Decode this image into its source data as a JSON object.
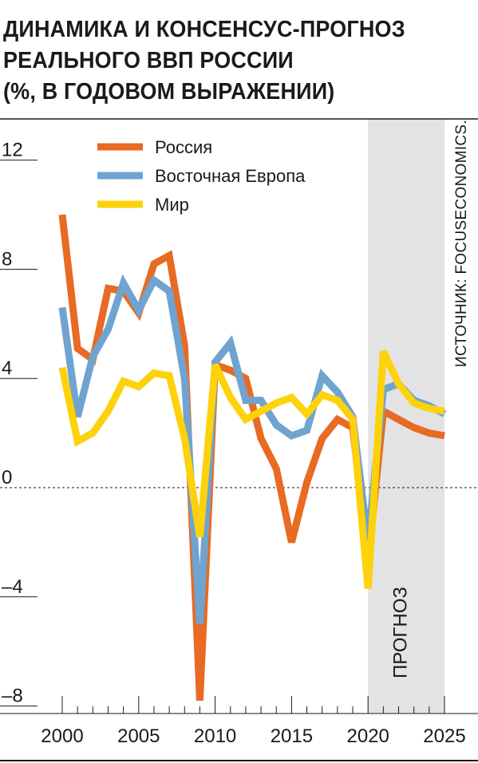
{
  "title_lines": [
    "ДИНАМИКА И КОНСЕНСУС-ПРОГНОЗ",
    "РЕАЛЬНОГО ВВП РОССИИ",
    "(%, В ГОДОВОМ ВЫРАЖЕНИИ)"
  ],
  "source": "ИСТОЧНИК: FOCUSECONOMICS.",
  "chart_data": {
    "type": "line",
    "title": "ДИНАМИКА И КОНСЕНСУС-ПРОГНОЗ РЕАЛЬНОГО ВВП РОССИИ (%, В ГОДОВОМ ВЫРАЖЕНИИ)",
    "x": [
      2000,
      2001,
      2002,
      2003,
      2004,
      2005,
      2006,
      2007,
      2008,
      2009,
      2010,
      2011,
      2012,
      2013,
      2014,
      2015,
      2016,
      2017,
      2018,
      2019,
      2020,
      2021,
      2022,
      2023,
      2024,
      2025
    ],
    "x_ticks": [
      "2000",
      "2005",
      "2010",
      "2015",
      "2020",
      "2025"
    ],
    "y_ticks": [
      "12",
      "8",
      "4",
      "0",
      "–4",
      "–8"
    ],
    "ylim": [
      -8,
      12
    ],
    "xlim": [
      2000,
      2025
    ],
    "zero_line": "dashed",
    "legend_position": "top-left",
    "forecast": {
      "label": "ПРОГНОЗ",
      "from": 2020,
      "to": 2025,
      "color": "#e3e3e6"
    },
    "series": [
      {
        "name": "Россия",
        "color": "#e86a23",
        "values": [
          10.0,
          5.1,
          4.7,
          7.3,
          7.2,
          6.4,
          8.2,
          8.5,
          5.2,
          -7.8,
          4.5,
          4.3,
          4.0,
          1.8,
          0.7,
          -2.0,
          0.2,
          1.8,
          2.5,
          2.2,
          -2.7,
          2.8,
          2.5,
          2.2,
          2.0,
          1.9
        ]
      },
      {
        "name": "Восточная Европа",
        "color": "#6fa3d0",
        "values": [
          6.6,
          2.6,
          4.8,
          5.8,
          7.5,
          6.5,
          7.6,
          7.2,
          4.0,
          -5.0,
          4.6,
          5.3,
          3.2,
          3.2,
          2.3,
          1.9,
          2.1,
          4.1,
          3.5,
          2.6,
          -2.0,
          3.6,
          3.8,
          3.2,
          3.0,
          2.7
        ]
      },
      {
        "name": "Мир",
        "color": "#fdd20a",
        "values": [
          4.4,
          1.7,
          2.0,
          2.8,
          3.9,
          3.7,
          4.2,
          4.1,
          1.8,
          -1.8,
          4.5,
          3.3,
          2.5,
          2.8,
          3.1,
          3.3,
          2.7,
          3.4,
          3.2,
          2.5,
          -3.7,
          5.0,
          3.8,
          3.1,
          2.9,
          2.8
        ]
      }
    ]
  }
}
